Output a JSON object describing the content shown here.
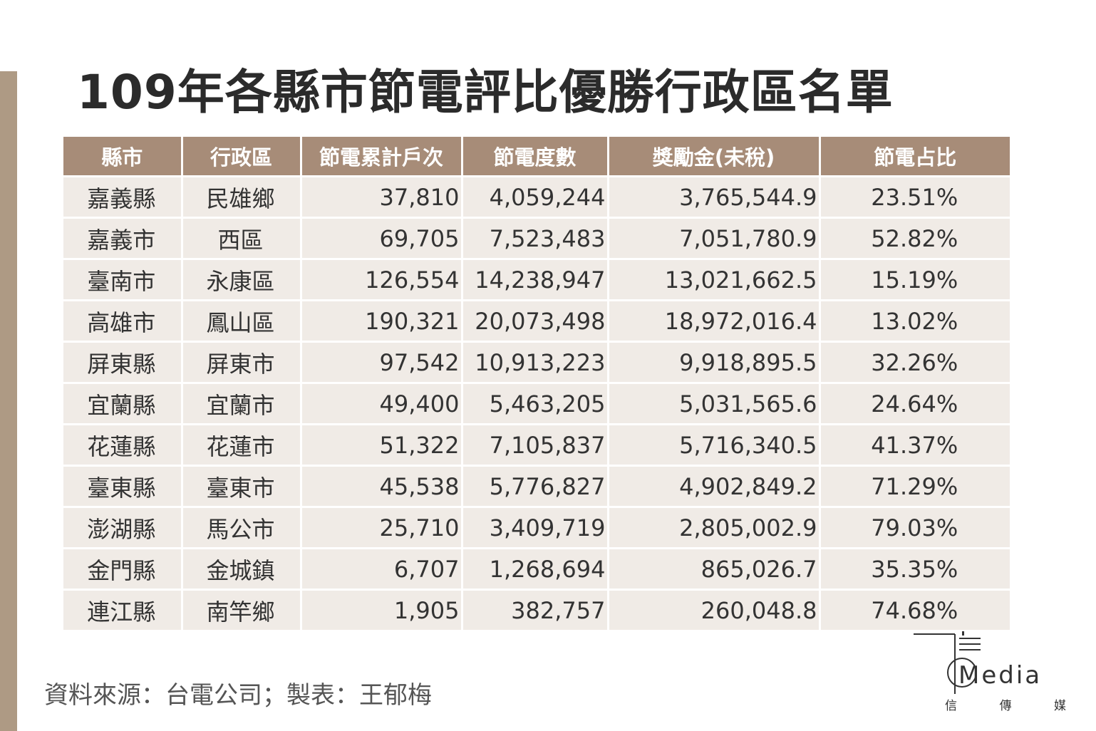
{
  "title": "109年各縣市節電評比優勝行政區名單",
  "table": {
    "headers": [
      "縣市",
      "行政區",
      "節電累計戶次",
      "節電度數",
      "獎勵金(未稅)",
      "節電占比"
    ],
    "rows": [
      [
        "嘉義縣",
        "民雄鄉",
        "37,810",
        "4,059,244",
        "3,765,544.9",
        "23.51%"
      ],
      [
        "嘉義市",
        "西區",
        "69,705",
        "7,523,483",
        "7,051,780.9",
        "52.82%"
      ],
      [
        "臺南市",
        "永康區",
        "126,554",
        "14,238,947",
        "13,021,662.5",
        "15.19%"
      ],
      [
        "高雄市",
        "鳳山區",
        "190,321",
        "20,073,498",
        "18,972,016.4",
        "13.02%"
      ],
      [
        "屏東縣",
        "屏東市",
        "97,542",
        "10,913,223",
        "9,918,895.5",
        "32.26%"
      ],
      [
        "宜蘭縣",
        "宜蘭市",
        "49,400",
        "5,463,205",
        "5,031,565.6",
        "24.64%"
      ],
      [
        "花蓮縣",
        "花蓮市",
        "51,322",
        "7,105,837",
        "5,716,340.5",
        "41.37%"
      ],
      [
        "臺東縣",
        "臺東市",
        "45,538",
        "5,776,827",
        "4,902,849.2",
        "71.29%"
      ],
      [
        "澎湖縣",
        "馬公市",
        "25,710",
        "3,409,719",
        "2,805,002.9",
        "79.03%"
      ],
      [
        "金門縣",
        "金城鎮",
        "6,707",
        "1,268,694",
        "865,026.7",
        "35.35%"
      ],
      [
        "連江縣",
        "南竿鄉",
        "1,905",
        "382,757",
        "260,048.8",
        "74.68%"
      ]
    ]
  },
  "source": "資料來源：台電公司；製表：王郁梅",
  "logo": {
    "word": "Media",
    "sub": [
      "信",
      "傳",
      "媒"
    ]
  },
  "colors": {
    "header_bg": "#a78c78",
    "row_bg": "#f0ebe6",
    "side_bar": "#ae9a84"
  }
}
